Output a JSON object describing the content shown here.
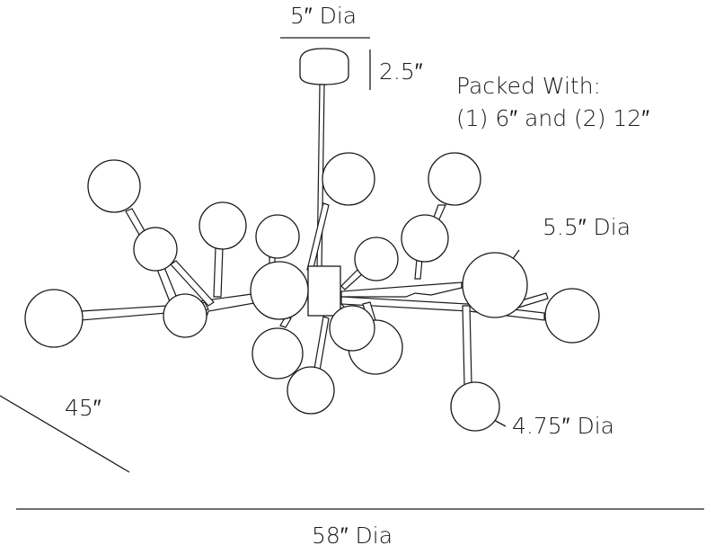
{
  "dimensions": {
    "canopy_diameter": "5″ Dia",
    "canopy_height": "2.5″",
    "packed_with_title": "Packed With:",
    "packed_with_detail": "(1) 6″ and (2) 12″",
    "large_globe_diameter": "5.5″ Dia",
    "small_globe_diameter": "4.75″ Dia",
    "overall_height": "45″",
    "overall_diameter": "58″ Dia"
  },
  "colors": {
    "stroke": "#1a1a1a",
    "background": "#ffffff"
  }
}
